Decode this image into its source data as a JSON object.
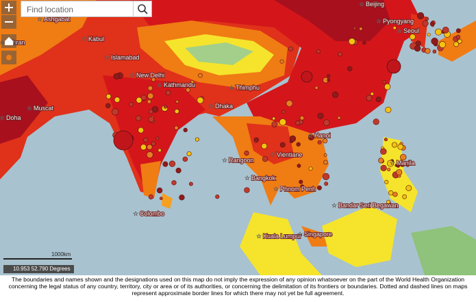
{
  "search": {
    "placeholder": "Find location"
  },
  "map": {
    "cities": [
      {
        "label": "Ashgabat"
      },
      {
        "label": "Tehran"
      },
      {
        "label": "Kabul"
      },
      {
        "label": "Islamabad"
      },
      {
        "label": "New Delhi"
      },
      {
        "label": "Kathmandu"
      },
      {
        "label": "Thimphu"
      },
      {
        "label": "Dhaka"
      },
      {
        "label": "Muscat"
      },
      {
        "label": "Doha"
      },
      {
        "label": "Beijing"
      },
      {
        "label": "Pyongyang"
      },
      {
        "label": "Seoul"
      },
      {
        "label": "Hanoi"
      },
      {
        "label": "Vientiane"
      },
      {
        "label": "Rangoon"
      },
      {
        "label": "Bangkok"
      },
      {
        "label": "Phnom Penh"
      },
      {
        "label": "Manila"
      },
      {
        "label": "Colombo"
      },
      {
        "label": "Kuala Lumpur"
      },
      {
        "label": "Singapore"
      },
      {
        "label": "Bandar Seri Begawan"
      }
    ],
    "scale": "1000km",
    "coordinates": "10.953 52.790 Degrees"
  },
  "footer": {
    "disclaimer": "The boundaries and names shown and the designations used on this map do not imply the expression of any opinion whatsoever on the part of the World Health Organization concerning the legal status of any country, territory, city or area or of its authorities, or concerning the delimitation of its frontiers or boundaries. Dotted and dashed lines on maps represent approximate border lines for which there may not yet be full agreement."
  }
}
